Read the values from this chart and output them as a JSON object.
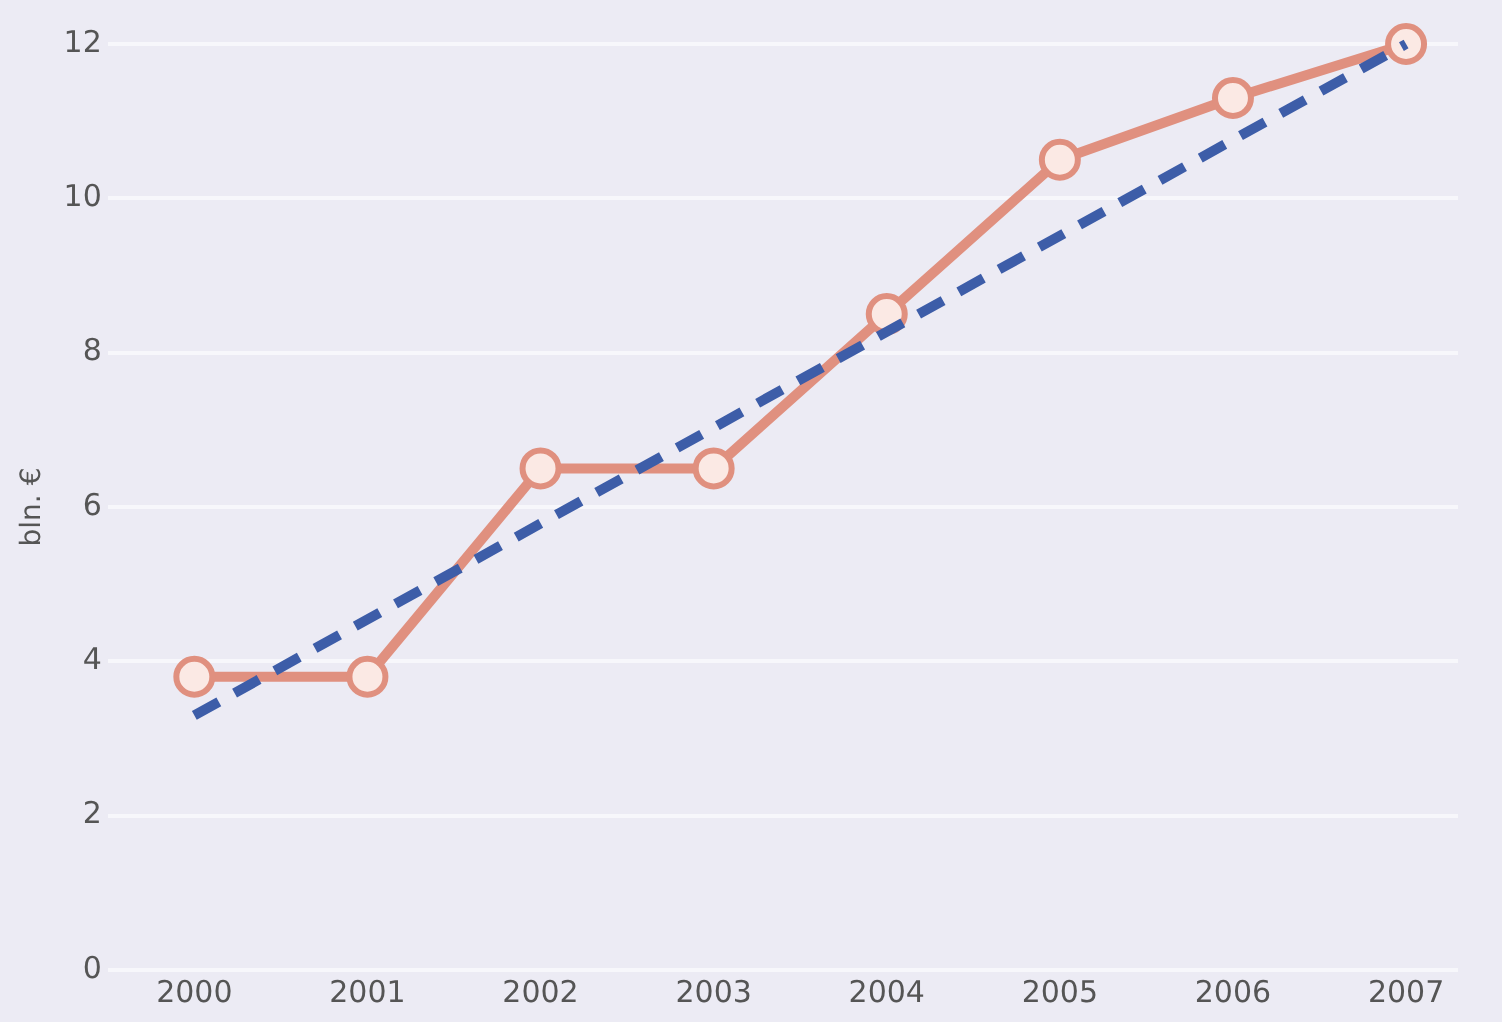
{
  "chart_data": {
    "type": "line",
    "ylabel": "bln. €",
    "x": [
      2000,
      2001,
      2002,
      2003,
      2004,
      2005,
      2006,
      2007
    ],
    "series": [
      {
        "name": null,
        "color": "#e0907f",
        "values": [
          3.8,
          3.8,
          6.5,
          6.5,
          8.5,
          10.5,
          11.3,
          12.0
        ],
        "marker": "circle",
        "line_style": "solid"
      },
      {
        "type": "line",
        "color": "#3d5da8",
        "x": [
          2000,
          2007
        ],
        "values": [
          3.3,
          12.0
        ],
        "marker": "none",
        "line_style": "dashed"
      }
    ],
    "xlim": [
      1999.5,
      2007.3
    ],
    "xticks": [
      2000,
      2001,
      2002,
      2003,
      2004,
      2005,
      2006,
      2007
    ],
    "ylim": [
      0,
      12
    ],
    "yticks": [
      0,
      2,
      4,
      6,
      8,
      10,
      12
    ],
    "grid": "y",
    "legend": false
  }
}
